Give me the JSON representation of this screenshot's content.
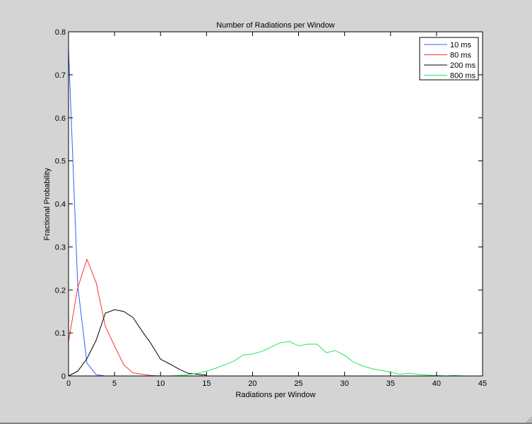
{
  "chart_data": {
    "type": "line",
    "title": "Number of Radiations per Window",
    "xlabel": "Radiations per Window",
    "ylabel": "Fractional Probability",
    "xlim": [
      0,
      45
    ],
    "ylim": [
      0,
      0.8
    ],
    "xticks": [
      0,
      5,
      10,
      15,
      20,
      25,
      30,
      35,
      40,
      45
    ],
    "yticks": [
      0,
      0.1,
      0.2,
      0.3,
      0.4,
      0.5,
      0.6,
      0.7,
      0.8
    ],
    "ytick_labels": [
      "0",
      "0.1",
      "0.2",
      "0.3",
      "0.4",
      "0.5",
      "0.6",
      "0.7",
      "0.8"
    ],
    "grid": false,
    "legend_position": "upper right",
    "series": [
      {
        "name": "10 ms",
        "color": "#3060ff",
        "x": [
          0,
          1,
          2,
          3,
          4
        ],
        "y": [
          0.76,
          0.21,
          0.03,
          0.003,
          0.0
        ]
      },
      {
        "name": "80 ms",
        "color": "#ff3030",
        "x": [
          0,
          1,
          2,
          3,
          4,
          5,
          6,
          7,
          8,
          9,
          10
        ],
        "y": [
          0.08,
          0.205,
          0.271,
          0.217,
          0.115,
          0.07,
          0.026,
          0.007,
          0.004,
          0.001,
          0.0
        ]
      },
      {
        "name": "200 ms",
        "color": "#000000",
        "x": [
          0,
          1,
          2,
          3,
          4,
          5,
          6,
          7,
          8,
          9,
          10,
          11,
          12,
          13,
          14,
          15
        ],
        "y": [
          0.0,
          0.011,
          0.04,
          0.083,
          0.146,
          0.154,
          0.15,
          0.136,
          0.104,
          0.074,
          0.039,
          0.028,
          0.016,
          0.006,
          0.004,
          0.002
        ]
      },
      {
        "name": "800 ms",
        "color": "#20e860",
        "x": [
          11,
          12,
          13,
          14,
          15,
          16,
          17,
          18,
          19,
          20,
          21,
          22,
          23,
          24,
          25,
          26,
          27,
          28,
          29,
          30,
          31,
          32,
          33,
          34,
          35,
          36,
          37,
          38,
          39,
          40,
          41,
          42,
          43
        ],
        "y": [
          0.0,
          0.001,
          0.003,
          0.006,
          0.011,
          0.018,
          0.026,
          0.035,
          0.049,
          0.051,
          0.057,
          0.067,
          0.077,
          0.08,
          0.07,
          0.074,
          0.074,
          0.054,
          0.059,
          0.048,
          0.032,
          0.023,
          0.017,
          0.013,
          0.009,
          0.004,
          0.006,
          0.004,
          0.002,
          0.001,
          0.0,
          0.001,
          0.0
        ]
      }
    ]
  },
  "colors": {
    "figure_background": "#d4d4d4",
    "axes_background": "#ffffff",
    "axes_edge": "#000000"
  }
}
